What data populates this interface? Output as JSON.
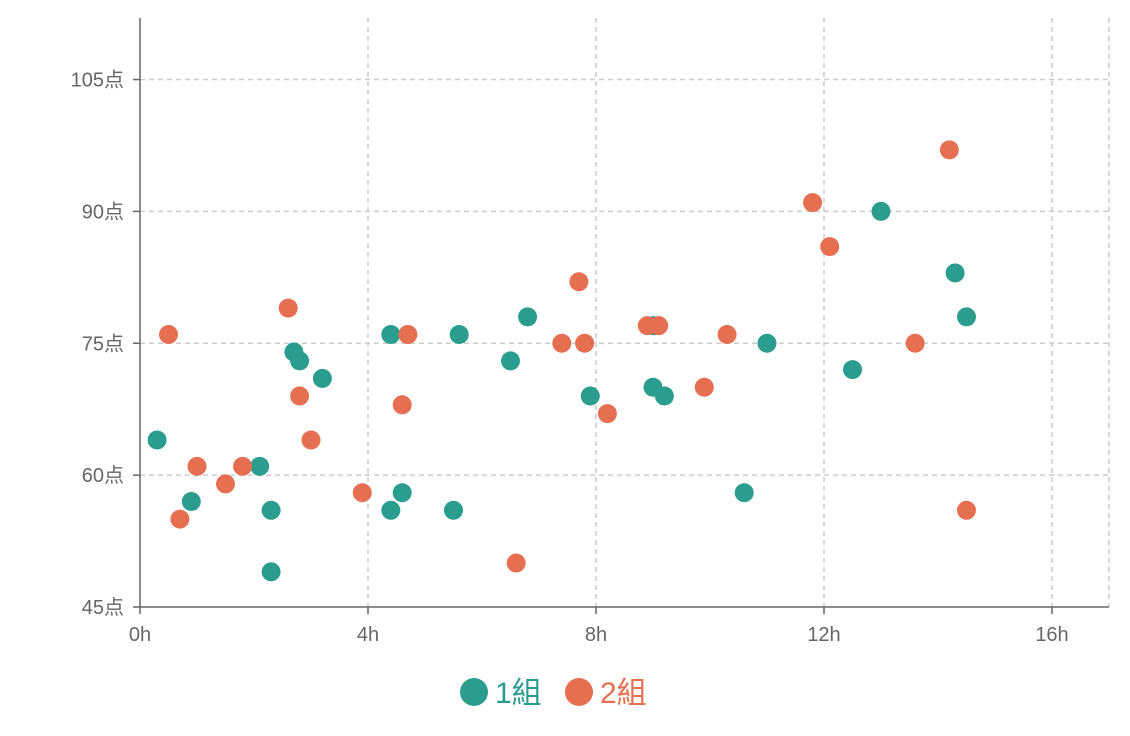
{
  "chart_data": {
    "type": "scatter",
    "title": "",
    "xlabel": "",
    "ylabel": "",
    "xlim": [
      0,
      17
    ],
    "ylim": [
      45,
      112
    ],
    "x_ticks": [
      0,
      4,
      8,
      12,
      16
    ],
    "x_tick_labels": [
      "0h",
      "4h",
      "8h",
      "12h",
      "16h"
    ],
    "y_ticks": [
      45,
      60,
      75,
      90,
      105
    ],
    "y_tick_labels": [
      "45点",
      "60点",
      "75点",
      "90点",
      "105点"
    ],
    "grid": true,
    "legend_position": "bottom",
    "series": [
      {
        "name": "1組",
        "color": "#2a9d8f",
        "points": [
          [
            0.3,
            64
          ],
          [
            0.9,
            57
          ],
          [
            2.1,
            61
          ],
          [
            2.3,
            56
          ],
          [
            2.3,
            49
          ],
          [
            2.7,
            74
          ],
          [
            2.8,
            73
          ],
          [
            3.2,
            71
          ],
          [
            4.4,
            76
          ],
          [
            4.4,
            56
          ],
          [
            4.6,
            58
          ],
          [
            5.5,
            56
          ],
          [
            5.6,
            76
          ],
          [
            6.5,
            73
          ],
          [
            6.8,
            78
          ],
          [
            7.9,
            69
          ],
          [
            9.0,
            70
          ],
          [
            9.0,
            77
          ],
          [
            9.2,
            69
          ],
          [
            10.6,
            58
          ],
          [
            11.0,
            75
          ],
          [
            12.5,
            72
          ],
          [
            13.0,
            90
          ],
          [
            14.3,
            83
          ],
          [
            14.5,
            78
          ]
        ]
      },
      {
        "name": "2組",
        "color": "#e76f51",
        "points": [
          [
            0.5,
            76
          ],
          [
            0.7,
            55
          ],
          [
            1.0,
            61
          ],
          [
            1.5,
            59
          ],
          [
            1.8,
            61
          ],
          [
            2.6,
            79
          ],
          [
            2.8,
            69
          ],
          [
            3.0,
            64
          ],
          [
            3.9,
            58
          ],
          [
            4.6,
            68
          ],
          [
            4.7,
            76
          ],
          [
            6.6,
            50
          ],
          [
            7.4,
            75
          ],
          [
            7.7,
            82
          ],
          [
            7.8,
            75
          ],
          [
            8.2,
            67
          ],
          [
            8.9,
            77
          ],
          [
            9.1,
            77
          ],
          [
            9.9,
            70
          ],
          [
            10.3,
            76
          ],
          [
            11.8,
            91
          ],
          [
            12.1,
            86
          ],
          [
            13.6,
            75
          ],
          [
            14.2,
            97
          ],
          [
            14.5,
            56
          ]
        ]
      }
    ]
  }
}
